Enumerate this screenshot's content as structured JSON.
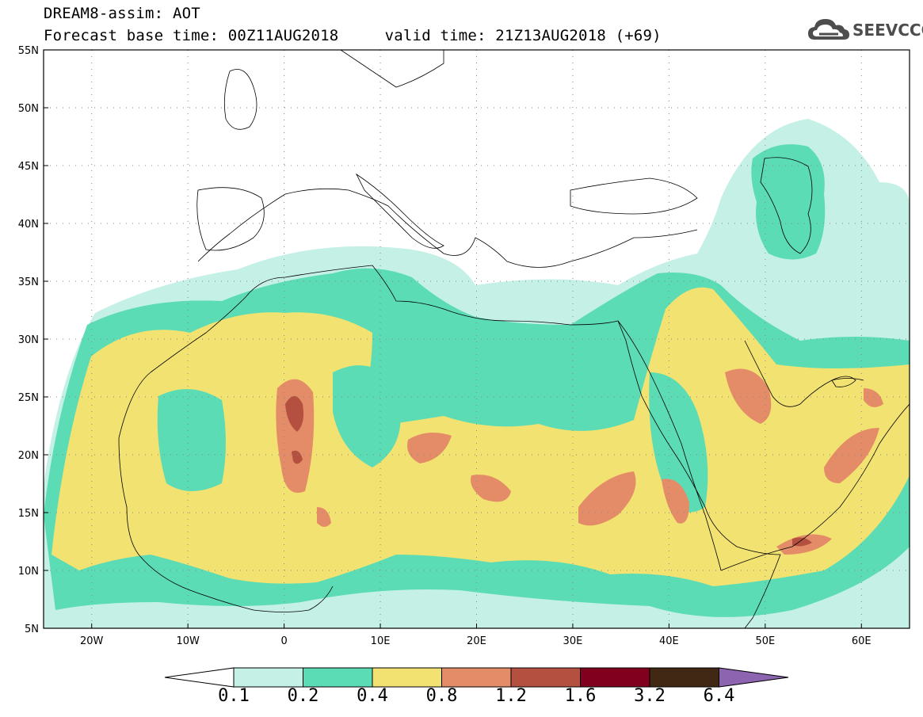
{
  "header": {
    "title": "DREAM8-assim: AOT",
    "subtitle": "Forecast base time: 00Z11AUG2018     valid time: 21Z13AUG2018 (+69)"
  },
  "logo": {
    "text": "SEEVCCC",
    "icon": "cloud-icon"
  },
  "map": {
    "projection": "lat-lon",
    "lon_range": [
      -25,
      65
    ],
    "lat_range": [
      5,
      55
    ],
    "lat_ticks": [
      "55N",
      "50N",
      "45N",
      "40N",
      "35N",
      "30N",
      "25N",
      "20N",
      "15N",
      "10N",
      "5N"
    ],
    "lon_ticks": [
      "20W",
      "10W",
      "0",
      "10E",
      "20E",
      "30E",
      "40E",
      "50E",
      "60E"
    ],
    "grid": "dotted"
  },
  "legend": {
    "labels": [
      "0.1",
      "0.2",
      "0.4",
      "0.8",
      "1.2",
      "1.6",
      "3.2",
      "6.4"
    ],
    "colors": [
      "#ffffff",
      "#c4f0e6",
      "#5cdcb4",
      "#f2e272",
      "#e48c68",
      "#b45040",
      "#80001e",
      "#402814",
      "#8c64b0"
    ]
  },
  "fill_colors": {
    "c01": "#c4f0e6",
    "c02": "#5cdcb4",
    "c04": "#f2e272",
    "c08": "#e48c68",
    "c12": "#b45040"
  }
}
